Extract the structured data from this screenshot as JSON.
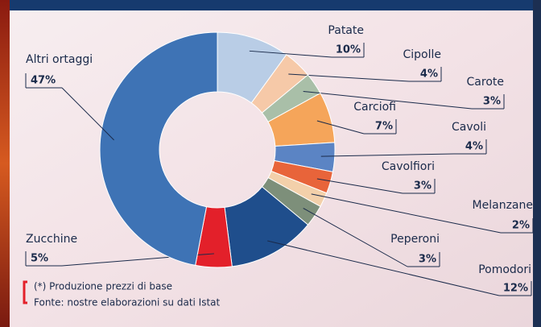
{
  "chart_data": {
    "type": "pie",
    "donut": true,
    "categories": [
      "Patate",
      "Cipolle",
      "Carote",
      "Carciofi",
      "Cavoli",
      "Cavolfiori",
      "Melanzane",
      "Peperoni",
      "Pomodori",
      "Zucchine",
      "Altri ortaggi"
    ],
    "values": [
      10,
      4,
      3,
      7,
      4,
      3,
      2,
      3,
      12,
      5,
      47
    ],
    "value_labels": [
      "10%",
      "4%",
      "3%",
      "7%",
      "4%",
      "3%",
      "2%",
      "3%",
      "12%",
      "5%",
      "47%"
    ],
    "colors": [
      "#b9cde6",
      "#f6c9a8",
      "#a9bfa8",
      "#f5a55a",
      "#5b84c4",
      "#e8643a",
      "#f3d0aa",
      "#7d8f7a",
      "#1f4e8c",
      "#e3202a",
      "#3e73b5"
    ],
    "notes": [
      "(*) Produzione prezzi di base",
      "Fonte: nostre elaborazioni su dati Istat"
    ]
  }
}
